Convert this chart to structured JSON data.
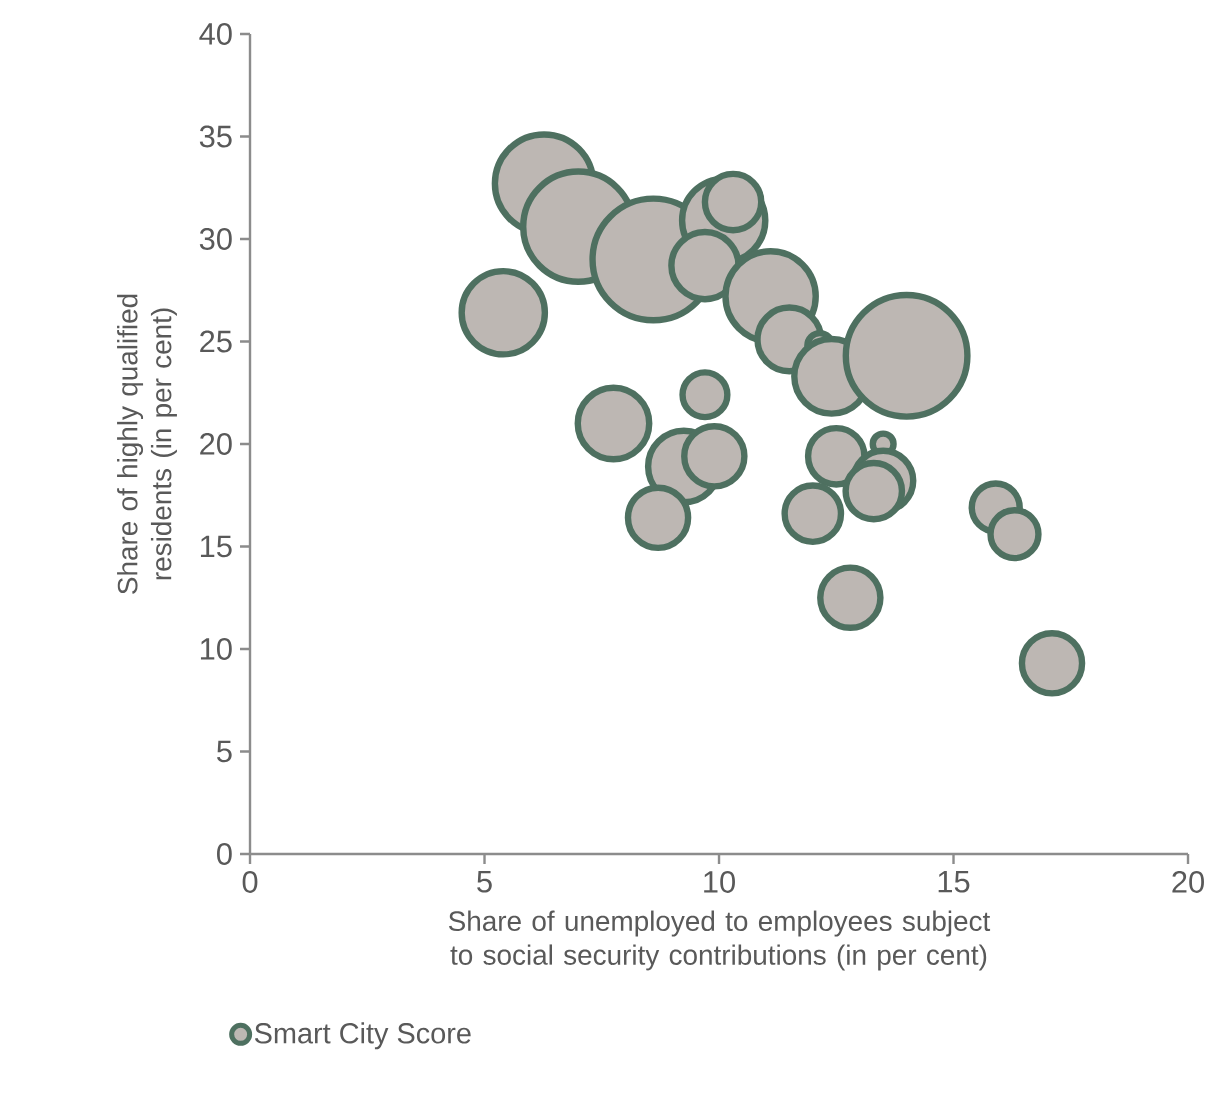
{
  "chart_data": {
    "type": "bubble",
    "xlabel": "Share of unemployed to employees subject to social security contributions (in per cent)",
    "ylabel": "Share of highly qualified residents (in per cent)",
    "xlim": [
      0,
      20
    ],
    "xticks": [
      0,
      5,
      10,
      15,
      20
    ],
    "ylim": [
      0,
      40
    ],
    "yticks": [
      0,
      5,
      10,
      15,
      20,
      25,
      30,
      35,
      40
    ],
    "grid": false,
    "legend": "bottom left",
    "series": [
      {
        "name": "Smart City Score",
        "color": "#4e7060",
        "x": [
          6.27,
          7.0,
          8.6,
          5.4,
          10.1,
          10.3,
          9.7,
          11.1,
          11.5,
          12.15,
          12.4,
          14.0,
          7.75,
          9.7,
          9.25,
          9.9,
          8.7,
          12.5,
          13.5,
          13.5,
          13.3,
          12.0,
          15.9,
          16.3,
          12.8,
          17.1
        ],
        "values": [
          32.7,
          30.6,
          29.0,
          26.4,
          30.9,
          31.8,
          28.7,
          27.2,
          25.1,
          24.8,
          23.3,
          24.3,
          21.0,
          22.4,
          18.9,
          19.4,
          16.4,
          19.4,
          20.0,
          18.2,
          17.7,
          16.6,
          16.9,
          15.6,
          12.5,
          9.3
        ],
        "sizes": [
          0.67,
          0.83,
          1,
          0.49,
          0.49,
          0.24,
          0.33,
          0.57,
          0.3,
          0.06,
          0.4,
          1,
          0.37,
          0.16,
          0.37,
          0.27,
          0.27,
          0.24,
          0.045,
          0.27,
          0.24,
          0.24,
          0.18,
          0.18,
          0.27,
          0.27
        ]
      }
    ]
  }
}
